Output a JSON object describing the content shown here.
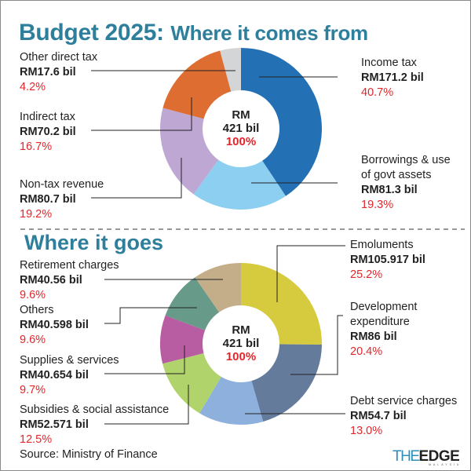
{
  "title": {
    "main": "Budget 2025:",
    "rest": "Where it comes from"
  },
  "subtitle": "Where it goes",
  "source": "Source: Ministry of Finance",
  "logo": {
    "the": "THE",
    "edge": "EDGE",
    "sub": "MALAYSIA"
  },
  "chart_data": [
    {
      "type": "pie",
      "variant": "donut",
      "title": "Budget 2025: Where it comes from",
      "center": {
        "currency": "RM",
        "total": "421 bil",
        "pct": "100%"
      },
      "unit": "RM bil",
      "start": "12 o'clock, clockwise",
      "slices": [
        {
          "name": "Income tax",
          "amount": "RM171.2 bil",
          "value": 171.2,
          "pct": "40.7%",
          "percent": 40.7,
          "color": "#2470b5"
        },
        {
          "name": "Borrowings & use of govt assets",
          "name_lines": [
            "Borrowings & use",
            "of govt assets"
          ],
          "amount": "RM81.3 bil",
          "value": 81.3,
          "pct": "19.3%",
          "percent": 19.3,
          "color": "#8ccff0"
        },
        {
          "name": "Non-tax revenue",
          "amount": "RM80.7 bil",
          "value": 80.7,
          "pct": "19.2%",
          "percent": 19.2,
          "color": "#bea7d2"
        },
        {
          "name": "Indirect tax",
          "amount": "RM70.2 bil",
          "value": 70.2,
          "pct": "16.7%",
          "percent": 16.7,
          "color": "#de6d31"
        },
        {
          "name": "Other direct tax",
          "amount": "RM17.6 bil",
          "value": 17.6,
          "pct": "4.2%",
          "percent": 4.2,
          "color": "#d3d5d7"
        }
      ]
    },
    {
      "type": "pie",
      "variant": "donut",
      "title": "Where it goes",
      "center": {
        "currency": "RM",
        "total": "421 bil",
        "pct": "100%"
      },
      "unit": "RM bil",
      "start": "12 o'clock, clockwise",
      "slices": [
        {
          "name": "Emoluments",
          "amount": "RM105.917 bil",
          "value": 105.917,
          "pct": "25.2%",
          "percent": 25.2,
          "color": "#d6cb3e"
        },
        {
          "name": "Development expenditure",
          "name_lines": [
            "Development",
            "expenditure"
          ],
          "amount": "RM86 bil",
          "value": 86,
          "pct": "20.4%",
          "percent": 20.4,
          "color": "#647b9b"
        },
        {
          "name": "Debt service charges",
          "amount": "RM54.7 bil",
          "value": 54.7,
          "pct": "13.0%",
          "percent": 13.0,
          "color": "#8db0dd"
        },
        {
          "name": "Subsidies & social assistance",
          "amount": "RM52.571 bil",
          "value": 52.571,
          "pct": "12.5%",
          "percent": 12.5,
          "color": "#b0d36b"
        },
        {
          "name": "Supplies & services",
          "amount": "RM40.654 bil",
          "value": 40.654,
          "pct": "9.7%",
          "percent": 9.7,
          "color": "#b85da2"
        },
        {
          "name": "Others",
          "amount": "RM40.598 bil",
          "value": 40.598,
          "pct": "9.6%",
          "percent": 9.6,
          "color": "#679a89"
        },
        {
          "name": "Retirement charges",
          "amount": "RM40.56 bil",
          "value": 40.56,
          "pct": "9.6%",
          "percent": 9.6,
          "color": "#c4ad89"
        }
      ]
    }
  ]
}
